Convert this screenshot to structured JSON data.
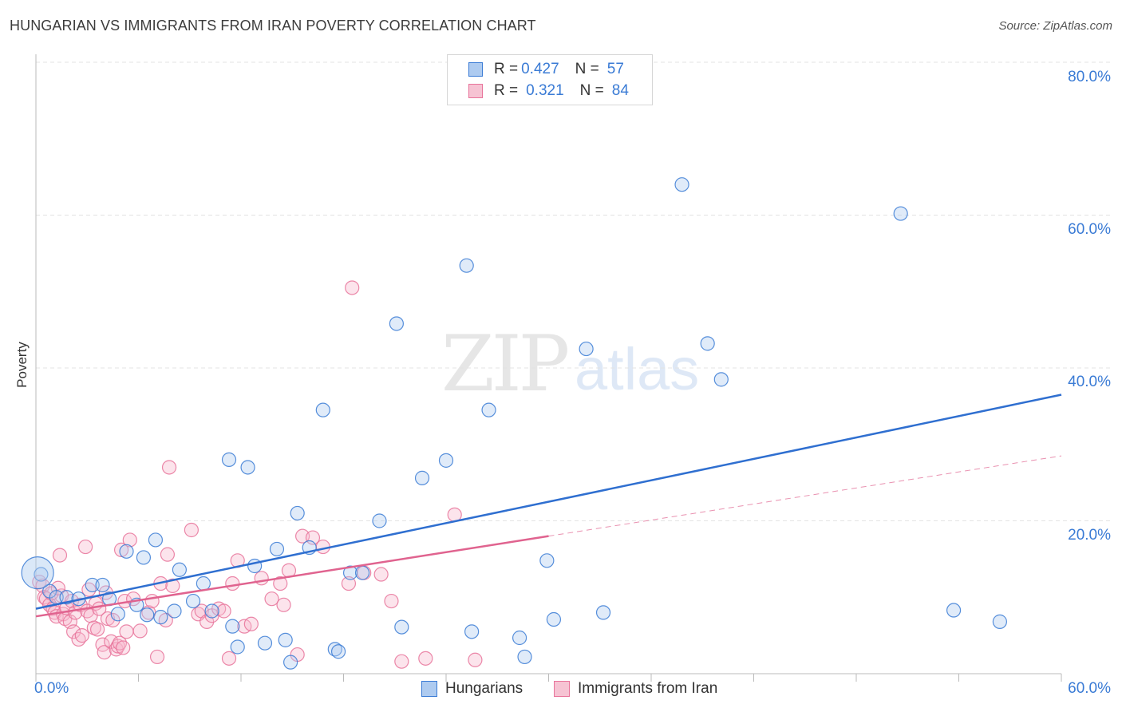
{
  "header": {
    "title": "HUNGARIAN VS IMMIGRANTS FROM IRAN POVERTY CORRELATION CHART",
    "source": "Source: ZipAtlas.com"
  },
  "watermark": {
    "zip": "ZIP",
    "atlas": "atlas"
  },
  "legend": {
    "rows": [
      {
        "r_label": "R =",
        "r_value": "0.427",
        "n_label": "N =",
        "n_value": "57"
      },
      {
        "r_label": "R =",
        "r_value": "0.321",
        "n_label": "N =",
        "n_value": "84"
      }
    ]
  },
  "bottom_legend": {
    "series1": "Hungarians",
    "series2": "Immigrants from Iran"
  },
  "axes": {
    "x_min_label": "0.0%",
    "x_max_label": "60.0%",
    "y_ticks": [
      "20.0%",
      "40.0%",
      "60.0%",
      "80.0%"
    ],
    "ylabel": "Poverty"
  },
  "colors": {
    "blue": "#3a7bd5",
    "blue_fill": "#aecbf0",
    "blue_line": "#2f6fd0",
    "pink": "#e8739a",
    "pink_fill": "#f6b8cc",
    "pink_line": "#e0638f",
    "grid": "#e3e3e3"
  },
  "chart_data": {
    "type": "scatter",
    "title": "HUNGARIAN VS IMMIGRANTS FROM IRAN POVERTY CORRELATION CHART",
    "xlabel": "",
    "ylabel": "Poverty",
    "xlim": [
      0,
      60
    ],
    "ylim": [
      0,
      82
    ],
    "grid": true,
    "legend_position": "top-center",
    "series": [
      {
        "name": "Hungarians",
        "r": 0.427,
        "n": 57,
        "trend": {
          "x": [
            0,
            60
          ],
          "y": [
            8.5,
            36.5
          ],
          "style": "solid"
        },
        "points": [
          [
            0.3,
            13.0
          ],
          [
            0.8,
            10.8
          ],
          [
            1.2,
            10.0
          ],
          [
            1.8,
            10.0
          ],
          [
            2.5,
            9.8
          ],
          [
            3.3,
            11.6
          ],
          [
            3.9,
            11.6
          ],
          [
            4.3,
            9.8
          ],
          [
            4.8,
            7.8
          ],
          [
            5.3,
            16.0
          ],
          [
            5.9,
            9.0
          ],
          [
            6.3,
            15.2
          ],
          [
            6.5,
            7.7
          ],
          [
            7.0,
            17.5
          ],
          [
            7.3,
            7.4
          ],
          [
            8.1,
            8.2
          ],
          [
            8.4,
            13.6
          ],
          [
            9.2,
            9.5
          ],
          [
            9.8,
            11.8
          ],
          [
            10.3,
            8.2
          ],
          [
            11.3,
            28.0
          ],
          [
            11.5,
            6.2
          ],
          [
            11.8,
            3.5
          ],
          [
            12.4,
            27.0
          ],
          [
            12.8,
            14.1
          ],
          [
            13.4,
            4.0
          ],
          [
            14.1,
            16.3
          ],
          [
            14.6,
            4.4
          ],
          [
            14.9,
            1.5
          ],
          [
            15.3,
            21.0
          ],
          [
            16.0,
            16.5
          ],
          [
            16.8,
            34.5
          ],
          [
            17.5,
            3.2
          ],
          [
            17.7,
            2.9
          ],
          [
            18.4,
            13.2
          ],
          [
            19.1,
            13.2
          ],
          [
            20.1,
            20.0
          ],
          [
            21.1,
            45.8
          ],
          [
            21.4,
            6.1
          ],
          [
            22.6,
            25.6
          ],
          [
            24.0,
            27.9
          ],
          [
            25.2,
            53.4
          ],
          [
            25.5,
            5.5
          ],
          [
            26.5,
            34.5
          ],
          [
            28.3,
            4.7
          ],
          [
            28.6,
            2.2
          ],
          [
            29.9,
            14.8
          ],
          [
            30.3,
            7.1
          ],
          [
            32.2,
            42.5
          ],
          [
            33.2,
            8.0
          ],
          [
            37.8,
            64.0
          ],
          [
            39.3,
            43.2
          ],
          [
            40.1,
            38.5
          ],
          [
            50.6,
            60.2
          ],
          [
            53.7,
            8.3
          ],
          [
            56.4,
            6.8
          ],
          [
            0.1,
            13.2
          ]
        ]
      },
      {
        "name": "Immigrants from Iran",
        "r": 0.321,
        "n": 84,
        "trend": {
          "x": [
            0,
            30
          ],
          "y": [
            7.5,
            18.0
          ],
          "style": "solid",
          "extension": {
            "x": [
              30,
              60
            ],
            "y": [
              18.0,
              28.5
            ],
            "style": "dashed"
          }
        },
        "points": [
          [
            0.2,
            12.0
          ],
          [
            0.4,
            11.5
          ],
          [
            0.5,
            10.0
          ],
          [
            0.6,
            9.8
          ],
          [
            0.8,
            9.0
          ],
          [
            1.0,
            8.5
          ],
          [
            1.1,
            8.0
          ],
          [
            1.2,
            7.5
          ],
          [
            1.4,
            15.5
          ],
          [
            1.5,
            10.2
          ],
          [
            1.6,
            7.8
          ],
          [
            1.7,
            7.2
          ],
          [
            1.8,
            8.6
          ],
          [
            2.0,
            6.8
          ],
          [
            2.1,
            9.5
          ],
          [
            2.2,
            5.5
          ],
          [
            2.3,
            8.0
          ],
          [
            2.5,
            4.5
          ],
          [
            2.6,
            9.0
          ],
          [
            2.7,
            5.0
          ],
          [
            2.9,
            16.6
          ],
          [
            3.0,
            8.2
          ],
          [
            3.1,
            11.0
          ],
          [
            3.2,
            7.6
          ],
          [
            3.4,
            6.0
          ],
          [
            3.5,
            9.2
          ],
          [
            3.6,
            5.8
          ],
          [
            3.7,
            8.5
          ],
          [
            3.9,
            3.8
          ],
          [
            4.0,
            2.8
          ],
          [
            4.1,
            10.6
          ],
          [
            4.2,
            7.2
          ],
          [
            4.4,
            4.2
          ],
          [
            4.5,
            7.0
          ],
          [
            4.7,
            3.2
          ],
          [
            4.8,
            3.6
          ],
          [
            4.9,
            4.0
          ],
          [
            5.0,
            16.2
          ],
          [
            5.1,
            3.4
          ],
          [
            5.2,
            9.5
          ],
          [
            5.3,
            5.5
          ],
          [
            5.5,
            17.5
          ],
          [
            5.7,
            9.8
          ],
          [
            6.1,
            5.6
          ],
          [
            6.6,
            8.0
          ],
          [
            6.8,
            9.5
          ],
          [
            7.1,
            2.2
          ],
          [
            7.3,
            11.8
          ],
          [
            7.6,
            7.0
          ],
          [
            7.7,
            15.6
          ],
          [
            7.8,
            27.0
          ],
          [
            8.0,
            11.5
          ],
          [
            9.1,
            18.8
          ],
          [
            9.5,
            7.8
          ],
          [
            9.7,
            8.2
          ],
          [
            10.0,
            6.8
          ],
          [
            10.3,
            7.6
          ],
          [
            10.7,
            8.5
          ],
          [
            11.0,
            8.2
          ],
          [
            11.3,
            2.0
          ],
          [
            11.5,
            11.8
          ],
          [
            11.8,
            14.8
          ],
          [
            12.2,
            6.2
          ],
          [
            12.6,
            6.5
          ],
          [
            13.2,
            12.5
          ],
          [
            13.8,
            9.8
          ],
          [
            14.3,
            11.8
          ],
          [
            14.5,
            9.0
          ],
          [
            14.8,
            13.5
          ],
          [
            15.3,
            2.5
          ],
          [
            15.6,
            18.0
          ],
          [
            16.2,
            17.8
          ],
          [
            16.8,
            16.6
          ],
          [
            18.3,
            11.8
          ],
          [
            18.5,
            50.5
          ],
          [
            19.2,
            13.2
          ],
          [
            20.2,
            13.0
          ],
          [
            20.8,
            9.5
          ],
          [
            21.4,
            1.6
          ],
          [
            22.8,
            2.0
          ],
          [
            24.5,
            20.8
          ],
          [
            25.7,
            1.8
          ],
          [
            0.9,
            10.5
          ],
          [
            1.3,
            11.2
          ]
        ]
      }
    ]
  }
}
